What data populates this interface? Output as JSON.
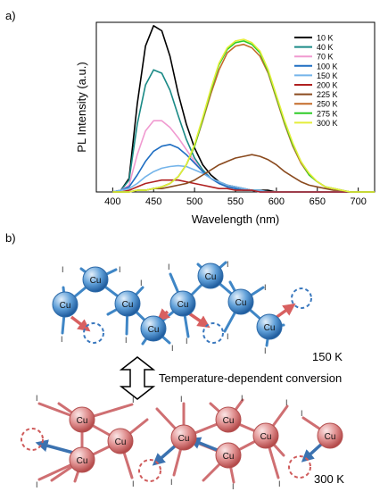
{
  "panel_labels": {
    "a": "a)",
    "b": "b)"
  },
  "chart_data": {
    "type": "line",
    "title": "",
    "xlabel": "Wavelength (nm)",
    "ylabel": "PL Intensity (a.u.)",
    "xlim": [
      380,
      720
    ],
    "ylim": [
      0,
      1.0
    ],
    "x_ticks": [
      400,
      450,
      500,
      550,
      600,
      650,
      700
    ],
    "y_ticks_shown": false,
    "legend_position": "top-right",
    "x": [
      400,
      410,
      420,
      430,
      440,
      450,
      460,
      470,
      480,
      490,
      500,
      510,
      520,
      530,
      540,
      550,
      560,
      570,
      580,
      590,
      600,
      610,
      620,
      630,
      640,
      650,
      660,
      670,
      680,
      690,
      700,
      710,
      720
    ],
    "series": [
      {
        "name": "10 K",
        "color": "#000000",
        "values": [
          0.0,
          0.01,
          0.08,
          0.52,
          0.86,
          0.98,
          0.95,
          0.8,
          0.58,
          0.4,
          0.26,
          0.16,
          0.1,
          0.06,
          0.04,
          0.03,
          0.02,
          0.01,
          0.01,
          0.01,
          0,
          0,
          0,
          0,
          0,
          0,
          0,
          0,
          0,
          0,
          0,
          0,
          0
        ]
      },
      {
        "name": "40 K",
        "color": "#1a8a86",
        "values": [
          0.0,
          0.01,
          0.07,
          0.4,
          0.63,
          0.72,
          0.7,
          0.6,
          0.45,
          0.31,
          0.2,
          0.13,
          0.08,
          0.05,
          0.03,
          0.02,
          0.01,
          0.01,
          0.01,
          0.0,
          0,
          0,
          0,
          0,
          0,
          0,
          0,
          0,
          0,
          0,
          0,
          0,
          0
        ]
      },
      {
        "name": "70 K",
        "color": "#f09ad0",
        "values": [
          0.0,
          0.01,
          0.04,
          0.22,
          0.36,
          0.42,
          0.42,
          0.38,
          0.32,
          0.25,
          0.18,
          0.12,
          0.08,
          0.05,
          0.03,
          0.02,
          0.01,
          0.01,
          0.0,
          0.0,
          0,
          0,
          0,
          0,
          0,
          0,
          0,
          0,
          0,
          0,
          0,
          0,
          0
        ]
      },
      {
        "name": "100 K",
        "color": "#1f6ec2",
        "values": [
          0.0,
          0.01,
          0.03,
          0.1,
          0.18,
          0.24,
          0.27,
          0.28,
          0.26,
          0.22,
          0.17,
          0.12,
          0.08,
          0.05,
          0.03,
          0.02,
          0.01,
          0.01,
          0.0,
          0.0,
          0,
          0,
          0,
          0,
          0,
          0,
          0,
          0,
          0,
          0,
          0,
          0,
          0
        ]
      },
      {
        "name": "150 K",
        "color": "#74b4ea",
        "values": [
          0.0,
          0.01,
          0.02,
          0.05,
          0.09,
          0.12,
          0.14,
          0.15,
          0.155,
          0.15,
          0.13,
          0.11,
          0.08,
          0.06,
          0.04,
          0.03,
          0.02,
          0.01,
          0.01,
          0.0,
          0,
          0,
          0,
          0,
          0,
          0,
          0,
          0,
          0,
          0,
          0,
          0,
          0
        ]
      },
      {
        "name": "200 K",
        "color": "#b02020",
        "values": [
          0.0,
          0.0,
          0.01,
          0.03,
          0.05,
          0.06,
          0.07,
          0.07,
          0.07,
          0.06,
          0.05,
          0.04,
          0.03,
          0.02,
          0.02,
          0.01,
          0.01,
          0.01,
          0.0,
          0.0,
          0,
          0,
          0,
          0,
          0,
          0,
          0,
          0,
          0,
          0,
          0,
          0,
          0
        ]
      },
      {
        "name": "225 K",
        "color": "#8a4a1e",
        "values": [
          0.0,
          0.0,
          0.0,
          0.01,
          0.01,
          0.02,
          0.02,
          0.03,
          0.04,
          0.05,
          0.07,
          0.1,
          0.13,
          0.16,
          0.18,
          0.2,
          0.21,
          0.22,
          0.21,
          0.19,
          0.16,
          0.12,
          0.09,
          0.06,
          0.04,
          0.03,
          0.02,
          0.01,
          0.01,
          0.0,
          0,
          0,
          0
        ]
      },
      {
        "name": "250 K",
        "color": "#c46a28",
        "values": [
          0.0,
          0.0,
          0.0,
          0.01,
          0.01,
          0.02,
          0.03,
          0.05,
          0.09,
          0.16,
          0.27,
          0.42,
          0.58,
          0.72,
          0.82,
          0.86,
          0.87,
          0.85,
          0.8,
          0.7,
          0.55,
          0.4,
          0.27,
          0.17,
          0.1,
          0.06,
          0.03,
          0.02,
          0.01,
          0.0,
          0,
          0,
          0
        ]
      },
      {
        "name": "275 K",
        "color": "#2ecc27",
        "values": [
          0.0,
          0.0,
          0.0,
          0.01,
          0.01,
          0.02,
          0.03,
          0.05,
          0.09,
          0.16,
          0.27,
          0.43,
          0.6,
          0.75,
          0.84,
          0.88,
          0.89,
          0.87,
          0.82,
          0.71,
          0.56,
          0.41,
          0.28,
          0.18,
          0.1,
          0.06,
          0.03,
          0.02,
          0.01,
          0.0,
          0,
          0,
          0
        ]
      },
      {
        "name": "300 K",
        "color": "#e4ee3a",
        "values": [
          0.0,
          0.0,
          0.0,
          0.01,
          0.01,
          0.02,
          0.03,
          0.05,
          0.09,
          0.16,
          0.28,
          0.44,
          0.61,
          0.76,
          0.85,
          0.89,
          0.9,
          0.88,
          0.83,
          0.72,
          0.57,
          0.42,
          0.29,
          0.18,
          0.11,
          0.06,
          0.03,
          0.02,
          0.01,
          0.0,
          0,
          0,
          0
        ]
      }
    ]
  },
  "diagram": {
    "atom_label": "Cu",
    "ligand_label": "I",
    "state_low": "150 K",
    "state_high": "300 K",
    "conversion_label": "Temperature-dependent conversion",
    "colors": {
      "low_atom": "#3d86c6",
      "low_bond": "#3f86c6",
      "high_atom": "#d26a6a",
      "high_bond": "#cf6f72",
      "arrow_low": "#d86060",
      "arrow_high": "#3b72b0",
      "vacancy_low": "#3a78be",
      "vacancy_high": "#cf5b5b"
    }
  }
}
